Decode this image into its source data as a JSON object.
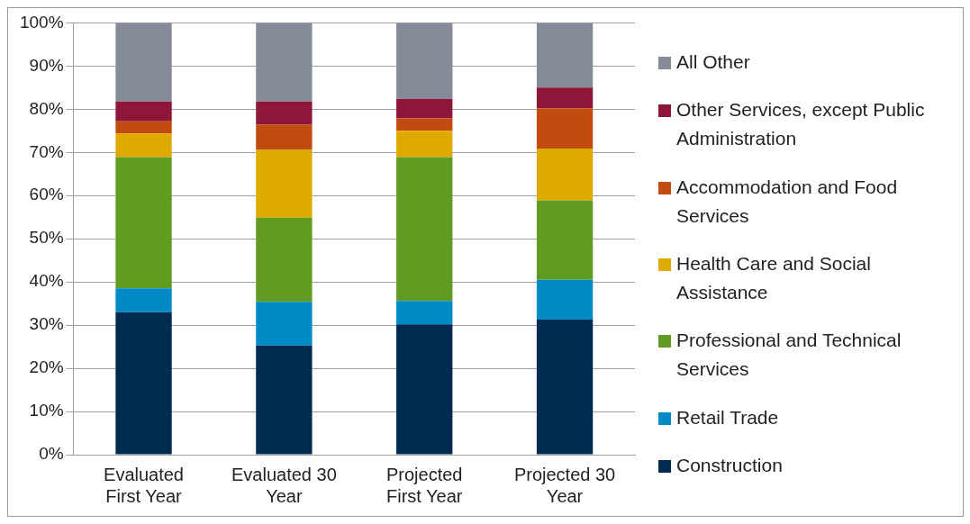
{
  "chart_data": {
    "type": "bar",
    "stacked": true,
    "categories": [
      "Evaluated First Year",
      "Evaluated 30 Year",
      "Projected First Year",
      "Projected 30 Year"
    ],
    "series": [
      {
        "name": "Construction",
        "color": "#002b50",
        "values": [
          33.0,
          25.3,
          30.2,
          31.3
        ]
      },
      {
        "name": "Retail Trade",
        "color": "#008bc7",
        "values": [
          5.5,
          10.1,
          5.4,
          9.2
        ]
      },
      {
        "name": "Professional and Technical Services",
        "color": "#619b21",
        "values": [
          30.4,
          19.5,
          33.3,
          18.4
        ]
      },
      {
        "name": "Health Care and Social Assistance",
        "color": "#dfaa00",
        "values": [
          5.5,
          15.7,
          6.1,
          12.0
        ]
      },
      {
        "name": "Accommodation and Food Services",
        "color": "#c24b10",
        "values": [
          2.8,
          5.8,
          2.9,
          9.3
        ]
      },
      {
        "name": "Other Services, except Public Administration",
        "color": "#8e1638",
        "values": [
          4.6,
          5.4,
          4.5,
          4.8
        ]
      },
      {
        "name": "All Other",
        "color": "#868b99",
        "values": [
          18.2,
          18.2,
          17.6,
          15.0
        ]
      }
    ],
    "ylim": [
      0,
      100
    ],
    "yticks": [
      {
        "value": 0,
        "label": "0%"
      },
      {
        "value": 10,
        "label": "10%"
      },
      {
        "value": 20,
        "label": "20%"
      },
      {
        "value": 30,
        "label": "30%"
      },
      {
        "value": 40,
        "label": "40%"
      },
      {
        "value": 50,
        "label": "50%"
      },
      {
        "value": 60,
        "label": "60%"
      },
      {
        "value": 70,
        "label": "70%"
      },
      {
        "value": 80,
        "label": "80%"
      },
      {
        "value": 90,
        "label": "90%"
      },
      {
        "value": 100,
        "label": "100%"
      }
    ],
    "grid": "y",
    "legend": "right"
  }
}
